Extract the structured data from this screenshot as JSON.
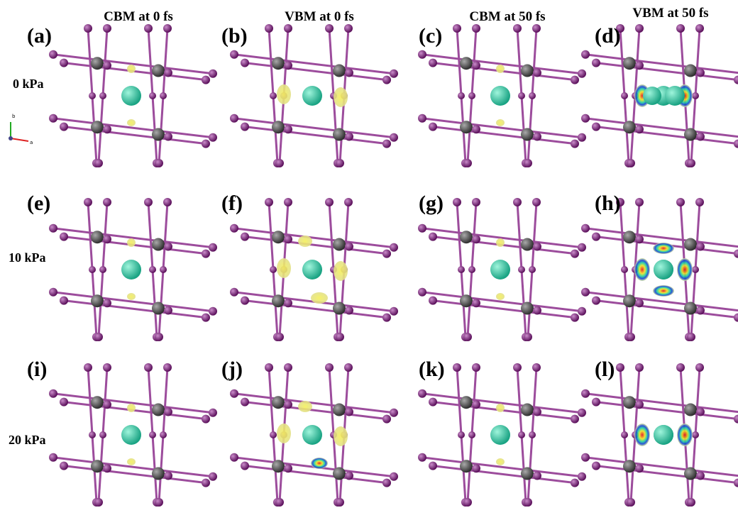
{
  "columns": [
    "CBM at 0 fs",
    "VBM at 0 fs",
    "CBM at 50 fs",
    "VBM at 50 fs"
  ],
  "rows": [
    "0 kPa",
    "10 kPa",
    "20 kPa"
  ],
  "panels": [
    [
      "(a)",
      "(b)",
      "(c)",
      "(d)"
    ],
    [
      "(e)",
      "(f)",
      "(g)",
      "(h)"
    ],
    [
      "(i)",
      "(j)",
      "(k)",
      "(l)"
    ]
  ],
  "axes": [
    "b",
    "a"
  ]
}
